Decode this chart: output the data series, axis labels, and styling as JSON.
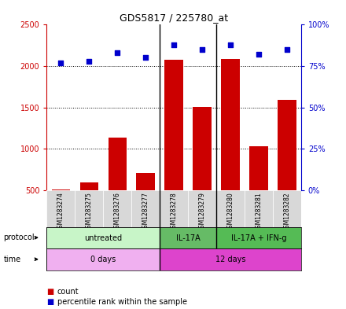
{
  "title": "GDS5817 / 225780_at",
  "samples": [
    "GSM1283274",
    "GSM1283275",
    "GSM1283276",
    "GSM1283277",
    "GSM1283278",
    "GSM1283279",
    "GSM1283280",
    "GSM1283281",
    "GSM1283282"
  ],
  "counts": [
    510,
    590,
    1130,
    710,
    2080,
    1510,
    2090,
    1030,
    1590
  ],
  "percentile_ranks": [
    77,
    78,
    83,
    80,
    88,
    85,
    88,
    82,
    85
  ],
  "ylim_left": [
    500,
    2500
  ],
  "ylim_right": [
    0,
    100
  ],
  "yticks_left": [
    500,
    1000,
    1500,
    2000,
    2500
  ],
  "yticks_right": [
    0,
    25,
    50,
    75,
    100
  ],
  "bar_color": "#cc0000",
  "scatter_color": "#0000cc",
  "protocols": [
    {
      "label": "untreated",
      "start": 0,
      "end": 4,
      "color": "#c8f5c8"
    },
    {
      "label": "IL-17A",
      "start": 4,
      "end": 6,
      "color": "#66bb66"
    },
    {
      "label": "IL-17A + IFN-g",
      "start": 6,
      "end": 9,
      "color": "#55bb55"
    }
  ],
  "times": [
    {
      "label": "0 days",
      "start": 0,
      "end": 4,
      "color": "#f0b0f0"
    },
    {
      "label": "12 days",
      "start": 4,
      "end": 9,
      "color": "#dd44cc"
    }
  ],
  "vlines": [
    3.5,
    5.5
  ],
  "dotted_yticks": [
    500,
    1000,
    1500,
    2000
  ],
  "axis_left_color": "#cc0000",
  "axis_right_color": "#0000cc",
  "background_color": "#ffffff",
  "label_protocol": "protocol",
  "label_time": "time",
  "legend_count": "count",
  "legend_pctile": "percentile rank within the sample"
}
